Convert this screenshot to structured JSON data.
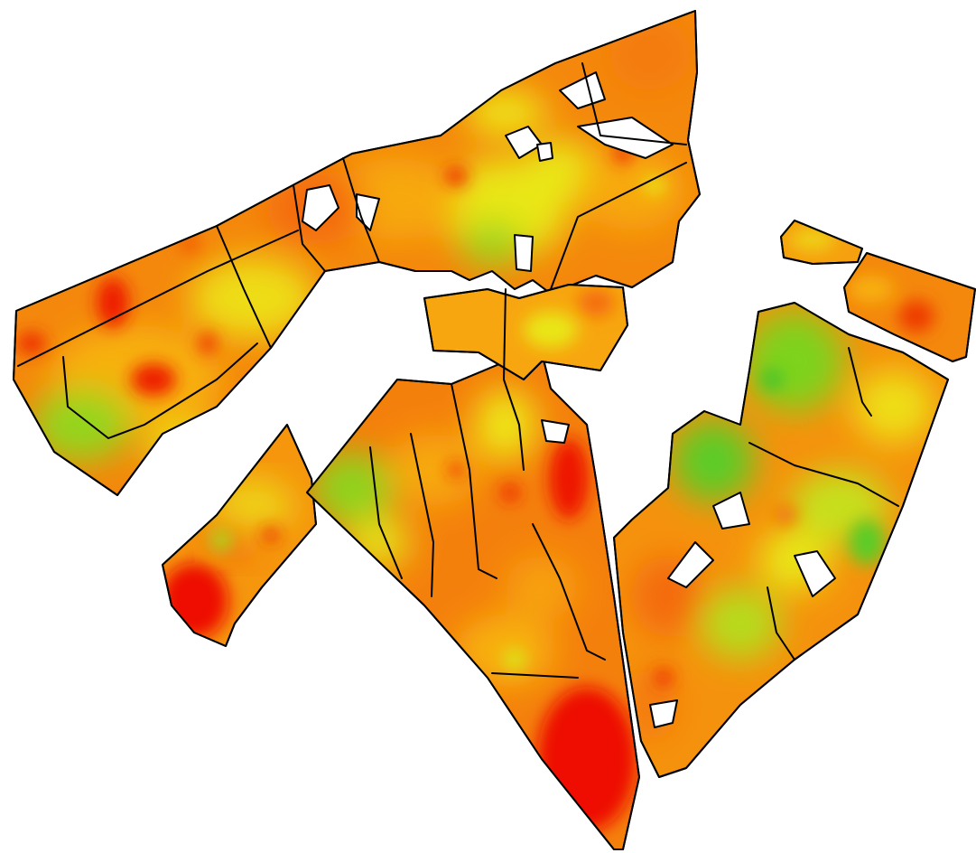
{
  "map": {
    "type": "field-heat-map",
    "palette": {
      "very_high": "#ee1100",
      "high": "#f46b0c",
      "medium": "#f7a90f",
      "low": "#e9e616",
      "very_low": "#7ed31f",
      "background": "#ffffff",
      "boundary": "#000000"
    }
  }
}
